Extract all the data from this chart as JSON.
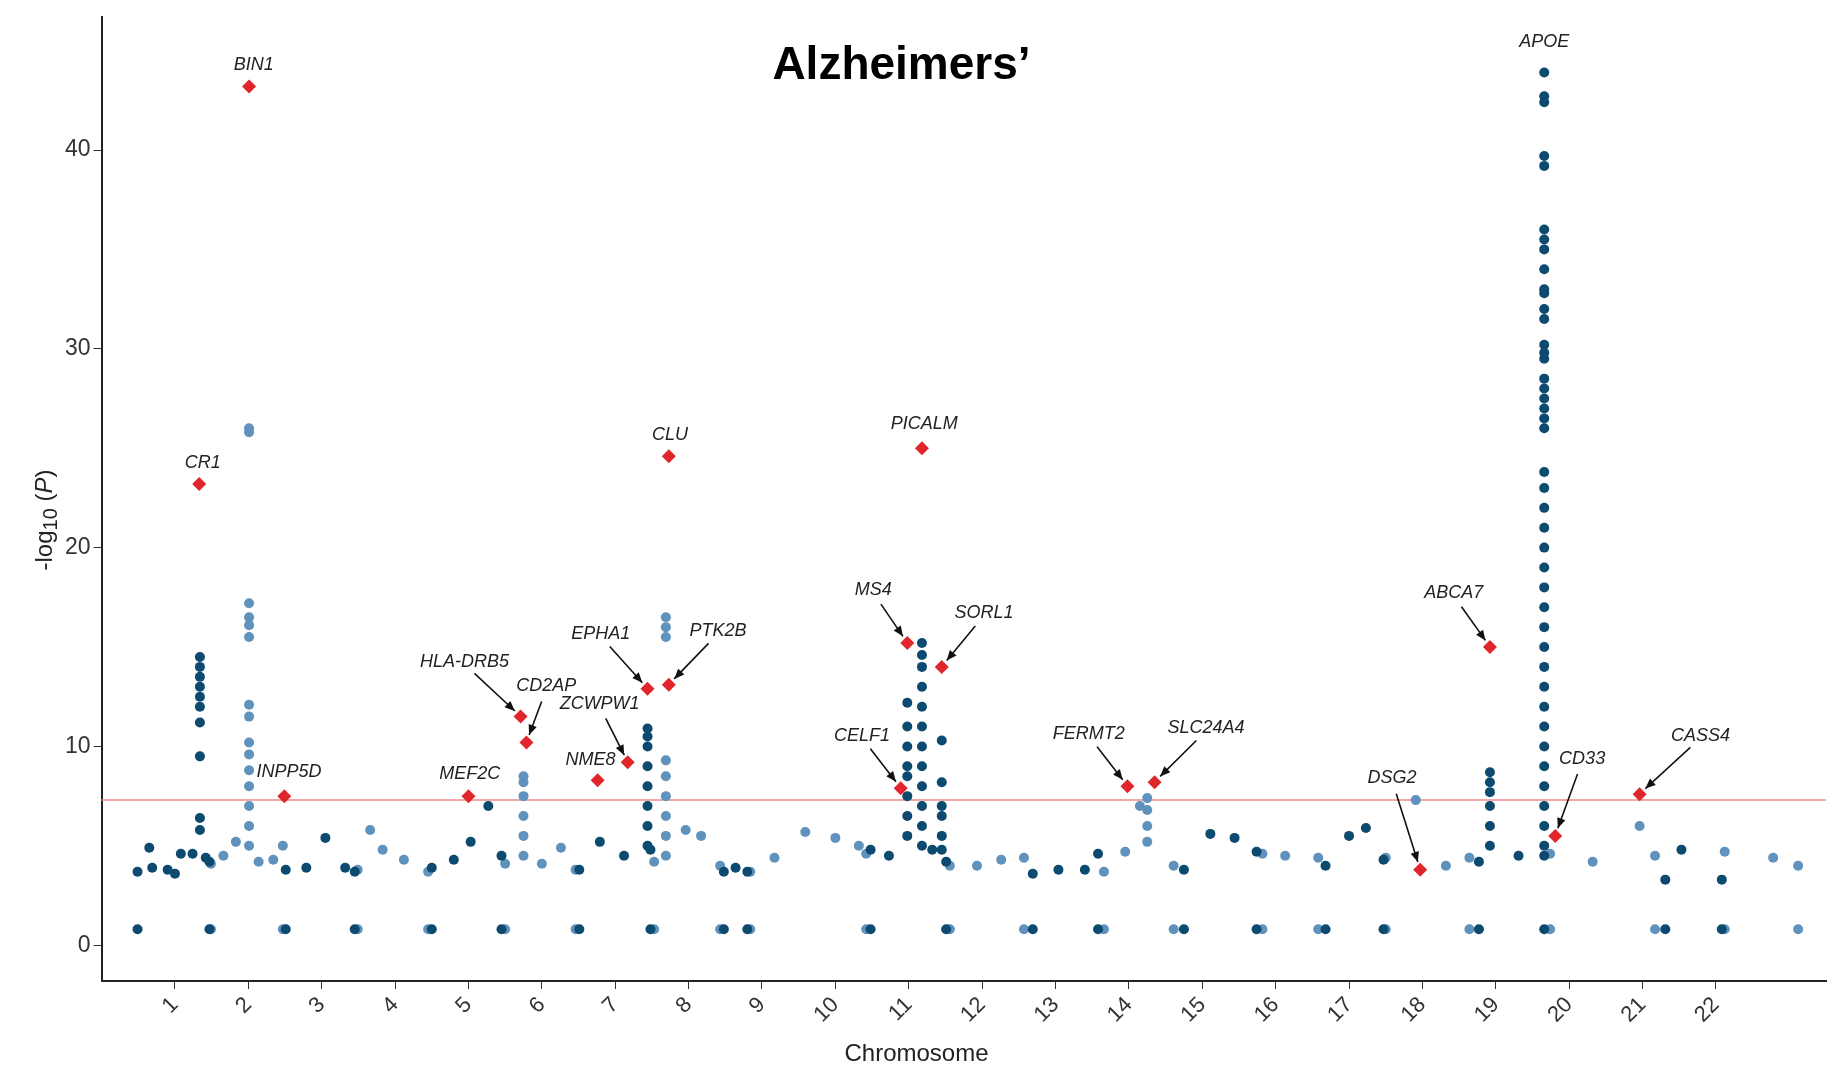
{
  "chart_data": {
    "type": "scatter",
    "title": "Alzheimers’",
    "xlabel": "Chromosome",
    "ylabel": "-log$_{10}$ (P)",
    "xlim": [
      0,
      23.5
    ],
    "ylim": [
      -1.8,
      46.7
    ],
    "yticks": [
      0,
      10,
      20,
      30,
      40
    ],
    "xticks": [
      1,
      2,
      3,
      4,
      5,
      6,
      7,
      8,
      9,
      10,
      11,
      12,
      13,
      14,
      15,
      16,
      17,
      18,
      19,
      20,
      21,
      22
    ],
    "grid": false,
    "legend": false,
    "marker": "circle",
    "ref_lines": [
      {
        "axis": "y",
        "value": 7.3,
        "color": "#f08a8a"
      }
    ],
    "series": [
      {
        "color": "#0d4a70",
        "x": [
          0.49,
          0.49,
          0.65,
          0.69,
          0.9,
          1,
          1.08,
          1.24,
          1.34,
          1.34,
          1.34,
          1.34,
          1.34,
          1.34,
          1.34,
          1.34,
          1.34,
          1.34,
          1.42,
          1.47,
          1.47,
          2.51,
          2.51,
          2.79,
          3.05,
          3.32,
          3.45,
          3.45,
          4.5,
          4.5,
          4.8,
          5.03,
          5.27,
          5.45,
          5.45,
          6.51,
          6.51,
          6.79,
          7.12,
          7.44,
          7.44,
          7.44,
          7.44,
          7.44,
          7.44,
          7.44,
          7.44,
          7.48,
          7.48,
          8.48,
          8.48,
          8.64,
          8.8,
          8.8,
          10.48,
          10.48,
          10.73,
          10.98,
          10.98,
          10.98,
          10.98,
          10.98,
          10.98,
          10.98,
          10.98,
          11.18,
          11.18,
          11.18,
          11.18,
          11.18,
          11.18,
          11.18,
          11.18,
          11.18,
          11.18,
          11.18,
          11.18,
          11.32,
          11.45,
          11.45,
          11.45,
          11.45,
          11.45,
          11.45,
          11.51,
          11.51,
          12.69,
          12.69,
          13.04,
          13.4,
          13.58,
          13.58,
          14.75,
          14.75,
          15.11,
          15.44,
          15.74,
          15.74,
          16.68,
          16.68,
          17,
          17.23,
          17.47,
          17.47,
          18.77,
          18.77,
          18.92,
          18.92,
          18.92,
          18.92,
          18.92,
          18.92,
          19.31,
          19.66,
          19.66,
          19.66,
          19.66,
          19.66,
          19.66,
          19.66,
          19.66,
          19.66,
          19.66,
          19.66,
          19.66,
          19.66,
          19.66,
          19.66,
          19.66,
          19.66,
          19.66,
          19.66,
          19.66,
          19.66,
          19.66,
          19.66,
          19.66,
          19.66,
          19.66,
          19.66,
          19.66,
          19.66,
          19.66,
          19.66,
          19.66,
          19.66,
          19.66,
          19.66,
          19.66,
          19.66,
          19.66,
          19.66,
          19.66,
          19.66,
          19.66,
          19.66,
          19.66,
          21.31,
          21.31,
          21.53,
          22.08,
          22.08
        ],
        "values": [
          3.7,
          0.8,
          4.9,
          3.9,
          3.8,
          3.6,
          4.6,
          4.6,
          14.5,
          14,
          13.5,
          13,
          12.5,
          12,
          11.2,
          9.5,
          6.4,
          5.8,
          4.4,
          4.2,
          0.8,
          3.8,
          0.8,
          3.9,
          5.4,
          3.9,
          3.7,
          0.8,
          3.9,
          0.8,
          4.3,
          5.2,
          7,
          4.5,
          0.8,
          3.8,
          0.8,
          5.2,
          4.5,
          10.9,
          10.5,
          10,
          9,
          8,
          7,
          6,
          5,
          4.8,
          0.8,
          3.7,
          0.8,
          3.9,
          3.7,
          0.8,
          4.8,
          0.8,
          4.5,
          12.2,
          11,
          10,
          9,
          8.5,
          7.5,
          6.5,
          5.5,
          15.2,
          14.6,
          14,
          13,
          12,
          11,
          10,
          9,
          8,
          7,
          6,
          5,
          4.8,
          10.3,
          8.2,
          7,
          6.5,
          5.5,
          4.8,
          4.2,
          0.8,
          3.6,
          0.8,
          3.8,
          3.8,
          4.6,
          0.8,
          3.8,
          0.8,
          5.6,
          5.4,
          4.7,
          0.8,
          4,
          0.8,
          5.5,
          5.9,
          4.3,
          0.8,
          4.2,
          0.8,
          8.7,
          8.2,
          7.7,
          7,
          6,
          5,
          4.5,
          43.9,
          42.7,
          42.4,
          39.7,
          39.2,
          36,
          35.5,
          35,
          34,
          33,
          32.8,
          32,
          31.5,
          30.2,
          29.8,
          29.5,
          28.5,
          28,
          27.5,
          27,
          26.5,
          26,
          23.8,
          23,
          22,
          21,
          20,
          19,
          18,
          17,
          16,
          15,
          14,
          13,
          12,
          11,
          10,
          9,
          8,
          7,
          6,
          5,
          4.5,
          0.8,
          3.3,
          0.8,
          4.8,
          3.3,
          0.8
        ]
      },
      {
        "color": "#5f92bd",
        "x": [
          1.49,
          1.49,
          1.66,
          1.83,
          2.01,
          2.01,
          2.01,
          2.01,
          2.01,
          2.01,
          2.01,
          2.01,
          2.01,
          2.01,
          2.01,
          2.01,
          2.01,
          2.01,
          2.01,
          2.14,
          2.34,
          2.47,
          2.47,
          3.49,
          3.49,
          3.66,
          3.83,
          4.12,
          4.45,
          4.45,
          5.5,
          5.5,
          5.75,
          5.75,
          5.75,
          5.75,
          5.75,
          5.75,
          6,
          6.26,
          6.46,
          6.46,
          7.53,
          7.53,
          7.69,
          7.69,
          7.69,
          7.69,
          7.69,
          7.69,
          7.69,
          7.69,
          7.69,
          7.96,
          8.17,
          8.43,
          8.43,
          8.84,
          8.84,
          9.17,
          9.59,
          10,
          10.32,
          10.42,
          10.42,
          11.56,
          11.56,
          11.93,
          12.26,
          12.57,
          12.57,
          13.66,
          13.66,
          13.95,
          14.15,
          14.25,
          14.25,
          14.25,
          14.25,
          14.61,
          14.61,
          15.82,
          15.82,
          16.13,
          16.58,
          16.58,
          17.5,
          17.5,
          17.91,
          18.32,
          18.64,
          18.64,
          19.74,
          19.74,
          20.32,
          20.96,
          21.17,
          21.17,
          22.12,
          22.12,
          22.78,
          23.12,
          23.12
        ],
        "values": [
          4.1,
          0.8,
          4.5,
          5.2,
          26,
          25.8,
          17.2,
          16.5,
          16.1,
          15.5,
          12.1,
          11.5,
          10.2,
          9.6,
          8.8,
          8,
          7,
          6,
          5,
          4.2,
          4.3,
          5,
          0.8,
          3.8,
          0.8,
          5.8,
          4.8,
          4.3,
          3.7,
          0.8,
          4.1,
          0.8,
          8.5,
          8.2,
          7.5,
          6.5,
          5.5,
          4.5,
          4.1,
          4.9,
          3.8,
          0.8,
          4.2,
          0.8,
          16.5,
          16,
          15.5,
          9.3,
          8.5,
          7.5,
          6.5,
          5.5,
          4.5,
          5.8,
          5.5,
          4,
          0.8,
          3.7,
          0.8,
          4.4,
          5.7,
          5.4,
          5,
          4.6,
          0.8,
          4,
          0.8,
          4,
          4.3,
          4.4,
          0.8,
          3.7,
          0.8,
          4.7,
          7,
          7.4,
          6.8,
          6,
          5.2,
          4,
          0.8,
          4.6,
          0.8,
          4.5,
          4.4,
          0.8,
          4.4,
          0.8,
          7.3,
          4,
          4.4,
          0.8,
          4.6,
          0.8,
          4.2,
          6,
          4.5,
          0.8,
          4.7,
          0.8,
          4.4,
          4,
          0.8
        ]
      },
      {
        "color": "#e0262b",
        "marker": "diamond",
        "x": [
          1.33,
          2.01,
          2.49,
          5,
          5.71,
          5.79,
          6.76,
          7.17,
          7.44,
          7.73,
          7.73,
          10.89,
          10.98,
          11.18,
          11.45,
          13.98,
          14.35,
          17.97,
          18.92,
          19.81,
          20.96
        ],
        "values": [
          23.2,
          43.2,
          7.5,
          7.5,
          11.5,
          10.2,
          8.3,
          9.2,
          12.9,
          13.1,
          24.6,
          7.9,
          15.2,
          25,
          14,
          8,
          8.2,
          3.8,
          15,
          5.5,
          7.6
        ]
      }
    ],
    "annotations": [
      {
        "text": "CR1",
        "x": 1.33,
        "y": 23.2
      },
      {
        "text": "BIN1",
        "x": 2.01,
        "y": 43.2
      },
      {
        "text": "INPP5D",
        "x": 2.49,
        "y": 7.5
      },
      {
        "text": "MEF2C",
        "x": 5,
        "y": 7.5
      },
      {
        "text": "HLA-DRB5",
        "x": 5.71,
        "y": 11.5
      },
      {
        "text": "CD2AP",
        "x": 5.79,
        "y": 10.2
      },
      {
        "text": "NME8",
        "x": 6.76,
        "y": 8.3
      },
      {
        "text": "ZCWPW1",
        "x": 7.17,
        "y": 9.2
      },
      {
        "text": "EPHA1",
        "x": 7.44,
        "y": 12.9
      },
      {
        "text": "PTK2B",
        "x": 7.73,
        "y": 13.1
      },
      {
        "text": "CLU",
        "x": 7.73,
        "y": 24.6
      },
      {
        "text": "CELF1",
        "x": 10.89,
        "y": 7.9
      },
      {
        "text": "MS4",
        "x": 10.98,
        "y": 15.2
      },
      {
        "text": "PICALM",
        "x": 11.18,
        "y": 25
      },
      {
        "text": "SORL1",
        "x": 11.45,
        "y": 14
      },
      {
        "text": "FERMT2",
        "x": 13.98,
        "y": 8
      },
      {
        "text": "SLC24A4",
        "x": 14.35,
        "y": 8.2
      },
      {
        "text": "DSG2",
        "x": 17.97,
        "y": 3.8
      },
      {
        "text": "ABCA7",
        "x": 18.92,
        "y": 15
      },
      {
        "text": "CD33",
        "x": 19.81,
        "y": 5.5
      },
      {
        "text": "CASS4",
        "x": 20.96,
        "y": 7.6
      },
      {
        "text": "APOE",
        "x": 19.66,
        "y": 43.9
      }
    ]
  }
}
